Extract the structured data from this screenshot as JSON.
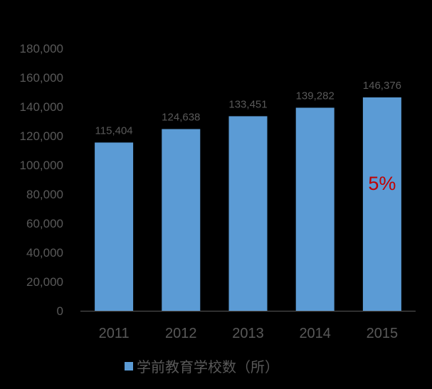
{
  "chart_data": {
    "type": "bar",
    "categories": [
      "2011",
      "2012",
      "2013",
      "2014",
      "2015"
    ],
    "series": [
      {
        "name": "学前教育学校数（所）",
        "values": [
          115404,
          124638,
          133451,
          139282,
          146376
        ],
        "value_labels": [
          "115,404",
          "124,638",
          "133,451",
          "139,282",
          "146,376"
        ]
      }
    ],
    "y_ticks": [
      "0",
      "20,000",
      "40,000",
      "60,000",
      "80,000",
      "100,000",
      "120,000",
      "140,000",
      "160,000",
      "180,000"
    ],
    "ylim": [
      0,
      180000
    ],
    "grid": false,
    "legend_position": "bottom",
    "annotation": {
      "text": "5%",
      "category": "2015",
      "y": 82000
    },
    "colors": {
      "background": "#000000",
      "bar": "#5b9bd5",
      "text": "#595959",
      "axis": "#595959",
      "annotation": "#c00000"
    }
  }
}
